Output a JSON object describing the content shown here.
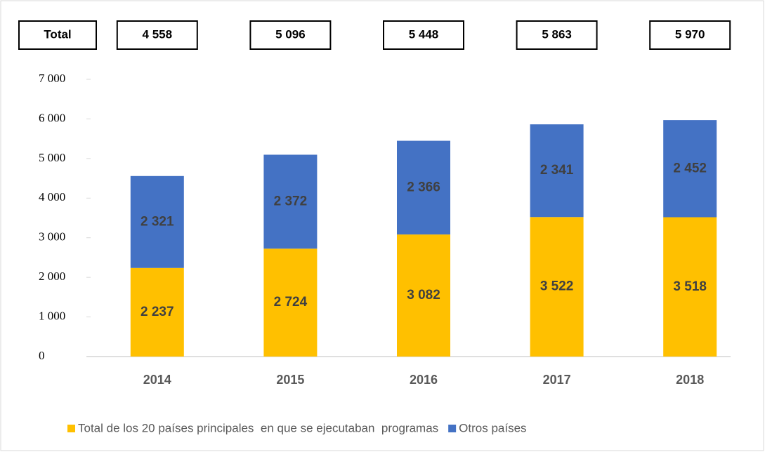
{
  "chart_data": {
    "type": "stacked_bar",
    "categories": [
      "2014",
      "2015",
      "2016",
      "2017",
      "2018"
    ],
    "series": [
      {
        "name": "Total de los 20 países principales  en que se ejecutaban  programas",
        "color": "#ffc000",
        "values": [
          2237,
          2724,
          3082,
          3522,
          3518
        ],
        "value_labels": [
          "2 237",
          "2 724",
          "3 082",
          "3 522",
          "3 518"
        ]
      },
      {
        "name": "Otros países",
        "color": "#4472c4",
        "values": [
          2321,
          2372,
          2366,
          2341,
          2452
        ],
        "value_labels": [
          "2 321",
          "2 372",
          "2 366",
          "2 341",
          "2 452"
        ]
      }
    ],
    "totals": {
      "label": "Total",
      "values": [
        4558,
        5096,
        5448,
        5863,
        5970
      ],
      "value_labels": [
        "4 558",
        "5 096",
        "5 448",
        "5 863",
        "5 970"
      ]
    },
    "ylim": [
      0,
      7000
    ],
    "yticks": [
      0,
      {
        "value": 1000,
        "label": "1 000"
      },
      {
        "value": 2000,
        "label": "2 000"
      },
      {
        "value": 3000,
        "label": "3 000"
      },
      {
        "value": 4000,
        "label": "4 000"
      },
      {
        "value": 5000,
        "label": "5 000"
      },
      {
        "value": 6000,
        "label": "6 000"
      },
      {
        "value": 7000,
        "label": "7 000"
      }
    ],
    "legend": "bottom"
  }
}
